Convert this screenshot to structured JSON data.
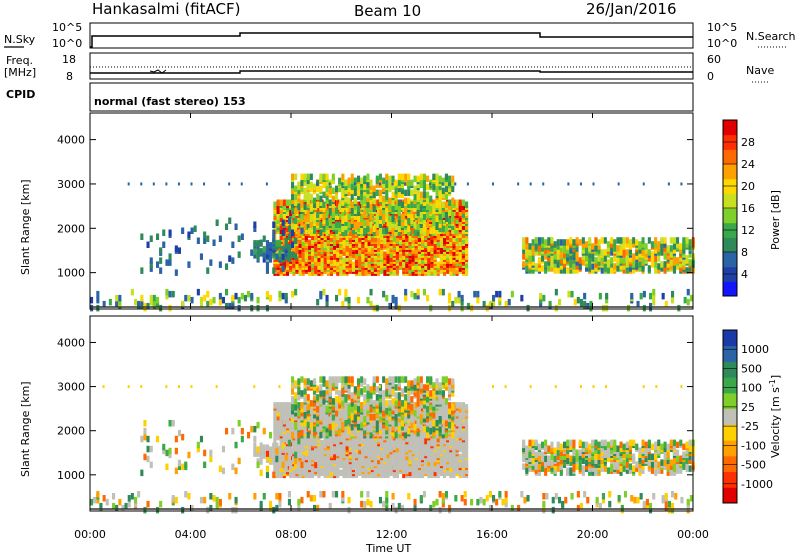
{
  "header": {
    "station": "Hankasalmi (fitACF)",
    "beam": "Beam 10",
    "date": "26/Jan/2016"
  },
  "top_panels": {
    "nsky_label": "N.Sky",
    "nsky_ticks": [
      "10^5",
      "10^0"
    ],
    "nsearch_label": "N.Search",
    "nsearch_ticks": [
      "10^5",
      "10^0"
    ],
    "freq_label": "Freq.",
    "freq_unit": "[MHz]",
    "freq_ticks": [
      "18",
      "8"
    ],
    "nave_label": "Nave",
    "nave_ticks": [
      "60",
      "0"
    ],
    "cpid_label": "CPID",
    "cpid_text": "normal (fast stereo) 153"
  },
  "chart_data": [
    {
      "type": "heatmap",
      "name": "power",
      "xlabel": "Time UT",
      "ylabel": "Slant Range [km]",
      "x_ticks": [
        "00:00",
        "04:00",
        "08:00",
        "12:00",
        "16:00",
        "20:00",
        "00:00"
      ],
      "y_ticks": [
        "1000",
        "2000",
        "3000",
        "4000"
      ],
      "ylim": [
        180,
        4600
      ],
      "colorbar": {
        "label": "Power [dB]",
        "ticks": [
          "4",
          "8",
          "12",
          "16",
          "20",
          "24",
          "28"
        ],
        "range": [
          0,
          30
        ],
        "colors": [
          "#1414ff",
          "#1e3fa8",
          "#2b64a6",
          "#2e8a5a",
          "#3aa84a",
          "#7fcf2a",
          "#c8e020",
          "#ffd800",
          "#ffa000",
          "#ff6a00",
          "#ff3000",
          "#e00000"
        ]
      }
    },
    {
      "type": "heatmap",
      "name": "velocity",
      "xlabel": "Time UT",
      "ylabel": "Slant Range [km]",
      "x_ticks": [
        "00:00",
        "04:00",
        "08:00",
        "12:00",
        "16:00",
        "20:00",
        "00:00"
      ],
      "y_ticks": [
        "1000",
        "2000",
        "3000",
        "4000"
      ],
      "ylim": [
        180,
        4600
      ],
      "colorbar": {
        "label": "Velocity [m s-1]",
        "ticks": [
          "1000",
          "500",
          "100",
          "25",
          "-25",
          "-100",
          "-500",
          "-1000"
        ],
        "colors": [
          "#1a3aa8",
          "#2b64a6",
          "#2e8a5a",
          "#3aa84a",
          "#7fcf2a",
          "#c0c0b8",
          "#ffd000",
          "#ffa000",
          "#ff6a00",
          "#ff3000",
          "#e00000"
        ]
      }
    }
  ]
}
